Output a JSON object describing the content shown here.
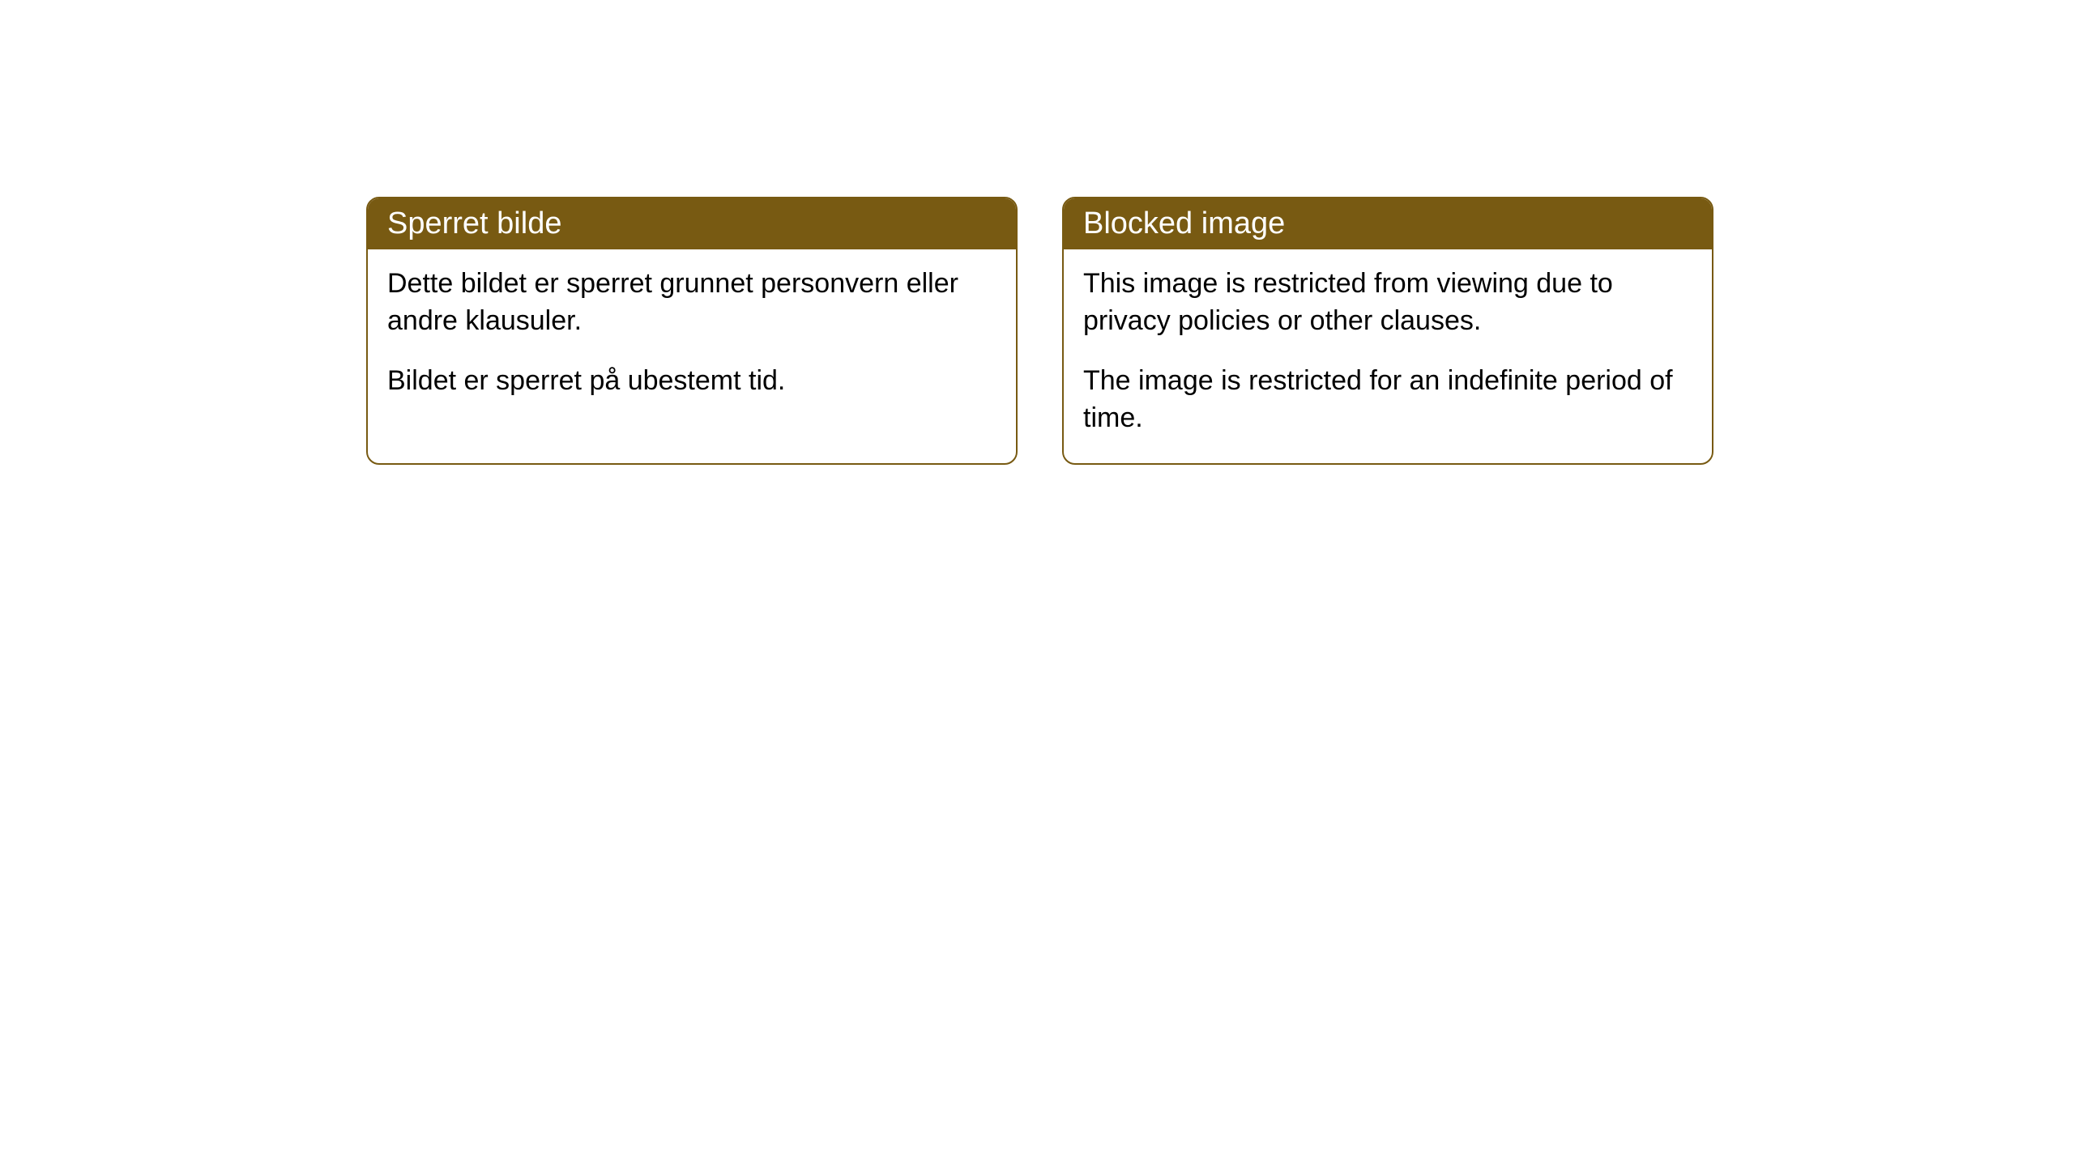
{
  "cards": [
    {
      "title": "Sperret bilde",
      "paragraph1": "Dette bildet er sperret grunnet personvern eller andre klausuler.",
      "paragraph2": "Bildet er sperret på ubestemt tid."
    },
    {
      "title": "Blocked image",
      "paragraph1": "This image is restricted from viewing due to privacy policies or other clauses.",
      "paragraph2": "The image is restricted for an indefinite period of time."
    }
  ],
  "style": {
    "header_bg": "#785a12",
    "header_text_color": "#ffffff",
    "border_color": "#785a12",
    "body_bg": "#ffffff",
    "body_text_color": "#000000",
    "border_radius": 16,
    "title_fontsize": 38,
    "body_fontsize": 34
  }
}
